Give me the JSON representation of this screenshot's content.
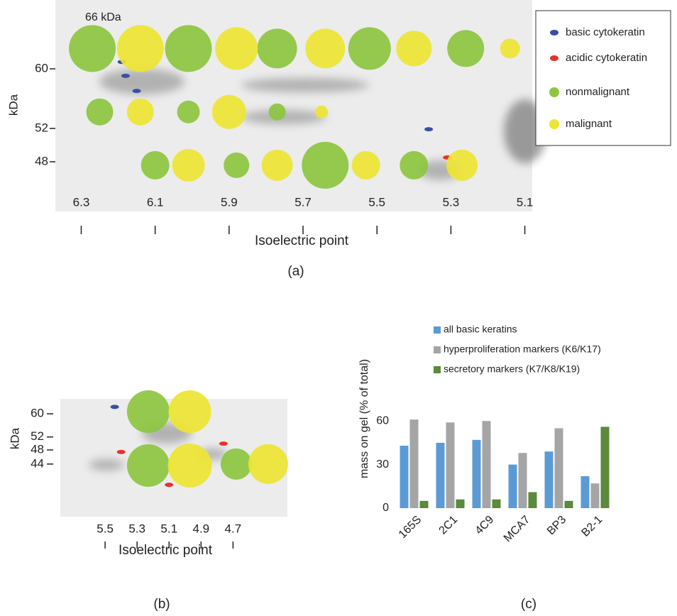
{
  "chart_data": [
    {
      "type": "bubble",
      "label": "(a)",
      "annotation": "66 kDa",
      "y_label": "kDa",
      "x_label": "Isoelectric point",
      "log_y": true,
      "xlim": [
        6.37,
        5.08
      ],
      "ylim": [
        44.3,
        69
      ],
      "xticks": [
        6.3,
        6.1,
        5.9,
        5.7,
        5.5,
        5.3,
        5.1
      ],
      "yticks": [
        48,
        52,
        60
      ],
      "legend": "right",
      "series": [
        {
          "name": "basic cytokeratin",
          "color": "#3a4ea6",
          "marker": "spot",
          "x": [
            6.19,
            6.18,
            6.15,
            5.36
          ],
          "values": [
            61,
            59,
            56.9,
            51.9
          ]
        },
        {
          "name": "acidic cytokeratin",
          "color": "#e5332a",
          "marker": "spot",
          "x": [
            5.31
          ],
          "values": [
            48.5
          ]
        },
        {
          "name": "nonmalignant",
          "color": "#8cc63f",
          "marker": "bubble",
          "x": [
            6.27,
            6.01,
            5.77,
            5.52,
            5.26,
            6.25,
            6.01,
            5.77,
            6.1,
            5.88,
            5.64,
            5.4
          ],
          "values": [
            63,
            63,
            63,
            63,
            63,
            54.1,
            54.1,
            54.1,
            47.6,
            47.6,
            47.6,
            47.6
          ],
          "sizes": [
            33,
            33,
            28,
            30,
            26,
            19,
            16,
            12,
            20,
            18,
            33,
            20
          ]
        },
        {
          "name": "malignant",
          "color": "#ede533",
          "marker": "bubble",
          "x": [
            6.14,
            5.88,
            5.64,
            5.4,
            5.14,
            6.14,
            5.9,
            5.65,
            6.01,
            5.77,
            5.53,
            5.27
          ],
          "values": [
            63,
            63,
            63,
            63,
            63,
            54.1,
            54.1,
            54.1,
            47.6,
            47.6,
            47.6,
            47.6
          ],
          "sizes": [
            33,
            30,
            28,
            25,
            14,
            19,
            24,
            9,
            23,
            22,
            20,
            22
          ]
        }
      ]
    },
    {
      "type": "bubble",
      "label": "(b)",
      "y_label": "kDa",
      "x_label": "Isoelectric point",
      "log_y": true,
      "xlim": [
        5.78,
        4.36
      ],
      "ylim": [
        31.8,
        65.8
      ],
      "xticks": [
        5.5,
        5.3,
        5.1,
        4.9,
        4.7
      ],
      "yticks": [
        44,
        48,
        52,
        60
      ],
      "series": [
        {
          "color": "#3a4ea6",
          "marker": "spot",
          "x": [
            5.44
          ],
          "values": [
            62.6
          ]
        },
        {
          "color": "#e5332a",
          "marker": "spot",
          "x": [
            5.4,
            4.76,
            5.1
          ],
          "values": [
            47.4,
            49.9,
            38.7
          ]
        },
        {
          "color": "#8cc63f",
          "marker": "bubble",
          "x": [
            5.23,
            5.23,
            4.68
          ],
          "values": [
            60.8,
            43.6,
            44
          ],
          "sizes": [
            30,
            30,
            22
          ]
        },
        {
          "color": "#ede533",
          "marker": "bubble",
          "x": [
            4.97,
            4.97,
            4.48
          ],
          "values": [
            60.8,
            43.6,
            44
          ],
          "sizes": [
            30,
            31,
            28
          ]
        }
      ]
    },
    {
      "type": "bar",
      "label": "(c)",
      "y_label": "mass on gel (% of total)",
      "categories": [
        "165S",
        "2C1",
        "4C9",
        "MCA7",
        "BP3",
        "B2-1"
      ],
      "ylim": [
        0,
        65
      ],
      "yticks": [
        0,
        30,
        60
      ],
      "legend": "top",
      "series": [
        {
          "name": "all basic keratins",
          "color": "#5b9bd5",
          "values": [
            43,
            45,
            47,
            30,
            39,
            22
          ]
        },
        {
          "name": "hyperproliferation markers (K6/K17)",
          "color": "#a5a5a5",
          "values": [
            61,
            59,
            60,
            38,
            55,
            17
          ]
        },
        {
          "name": "secretory markers (K7/K8/K19)",
          "color": "#5b8a3a",
          "values": [
            5,
            6,
            6,
            11,
            5,
            56
          ]
        }
      ]
    }
  ]
}
